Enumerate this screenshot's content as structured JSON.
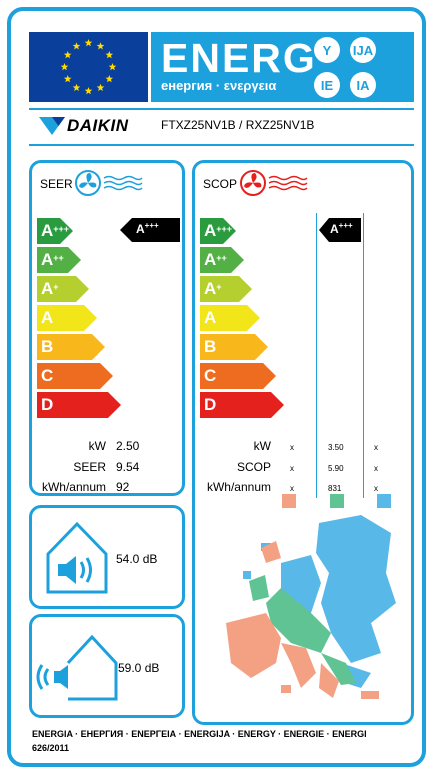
{
  "header": {
    "title": "ENERG",
    "subtitle": "енергия · ενεργεια",
    "circles": [
      "Y",
      "IJA",
      "IE",
      "IA"
    ]
  },
  "brand": {
    "name": "DAIKIN",
    "model": "FTXZ25NV1B / RXZ25NV1B"
  },
  "classes": [
    {
      "base": "A",
      "sup": "+++",
      "color": "#2a9b3e"
    },
    {
      "base": "A",
      "sup": "++",
      "color": "#52b045"
    },
    {
      "base": "A",
      "sup": "+",
      "color": "#b5cf2f"
    },
    {
      "base": "A",
      "sup": "",
      "color": "#f2e51a"
    },
    {
      "base": "B",
      "sup": "",
      "color": "#f8b81c"
    },
    {
      "base": "C",
      "sup": "",
      "color": "#ee6c1f"
    },
    {
      "base": "D",
      "sup": "",
      "color": "#e5211e"
    }
  ],
  "seer": {
    "title": "SEER",
    "rating": {
      "base": "A",
      "sup": "+++"
    },
    "rows": [
      {
        "label": "kW",
        "value": "2.50"
      },
      {
        "label": "SEER",
        "value": "9.54"
      },
      {
        "label": "kWh/annum",
        "value": "92"
      }
    ]
  },
  "scop": {
    "title": "SCOP",
    "rating": {
      "base": "A",
      "sup": "+++"
    },
    "rows": [
      {
        "label": "kW",
        "left": "x",
        "mid": "3.50",
        "right": "x"
      },
      {
        "label": "SCOP",
        "left": "x",
        "mid": "5.90",
        "right": "x"
      },
      {
        "label": "kWh/annum",
        "left": "x",
        "mid": "831",
        "right": "x"
      }
    ],
    "zone_colors": [
      "#f4a183",
      "#5fc394",
      "#58b9e9"
    ]
  },
  "noise_indoor": {
    "value": "54.0 dB"
  },
  "noise_outdoor": {
    "value": "59.0 dB"
  },
  "footer": {
    "line1": "ENERGIA · ЕНЕРГИЯ · ΕΝΕΡΓΕΙΑ · ENERGIJA · ENERGY · ENERGIE · ENERGI",
    "line2": "626/2011"
  },
  "colors": {
    "accent": "#1da1dc",
    "eu_blue": "#0b3f9c",
    "star": "#ffdd00",
    "black": "#000000"
  },
  "icons": [
    "eu-flag-icon",
    "fan-cool-icon",
    "fan-heat-icon",
    "speaker-indoor-icon",
    "speaker-outdoor-icon",
    "europe-map-icon",
    "daikin-logo-icon"
  ]
}
